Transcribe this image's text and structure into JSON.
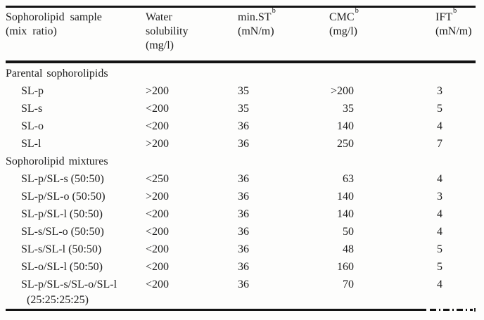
{
  "colors": {
    "text": "#1d1d1d",
    "rule": "#141414",
    "background": "#fdfdfc"
  },
  "table": {
    "headers": {
      "col1": {
        "line1": "Sophorolipid sample",
        "line2": "(mix ratio)"
      },
      "col2": {
        "line1": "Water",
        "line2": "solubility",
        "line3": "(mg/l)"
      },
      "col3": {
        "name": "min.ST",
        "sup": "b",
        "unit": "(mN/m)"
      },
      "col4": {
        "name": "CMC",
        "sup": "b",
        "unit": "(mg/l)"
      },
      "col5": {
        "name": "IFT",
        "sup": "b",
        "unit": "(mN/m)"
      }
    },
    "sections": [
      {
        "title": "Parental sophorolipids",
        "rows": [
          {
            "sample": "SL-p",
            "water_solubility": ">200",
            "min_st": "35",
            "cmc": ">200",
            "ift": "3"
          },
          {
            "sample": "SL-s",
            "water_solubility": "<200",
            "min_st": "35",
            "cmc": "35",
            "ift": "5"
          },
          {
            "sample": "SL-o",
            "water_solubility": "<200",
            "min_st": "36",
            "cmc": "140",
            "ift": "4"
          },
          {
            "sample": "SL-l",
            "water_solubility": ">200",
            "min_st": "36",
            "cmc": "250",
            "ift": "7"
          }
        ]
      },
      {
        "title": "Sophorolipid mixtures",
        "rows": [
          {
            "sample": "SL-p/SL-s (50:50)",
            "water_solubility": "<250",
            "min_st": "36",
            "cmc": "63",
            "ift": "4"
          },
          {
            "sample": "SL-p/SL-o (50:50)",
            "water_solubility": ">200",
            "min_st": "36",
            "cmc": "140",
            "ift": "3"
          },
          {
            "sample": "SL-p/SL-l (50:50)",
            "water_solubility": "<200",
            "min_st": "36",
            "cmc": "140",
            "ift": "4"
          },
          {
            "sample": "SL-s/SL-o (50:50)",
            "water_solubility": "<200",
            "min_st": "36",
            "cmc": "50",
            "ift": "4"
          },
          {
            "sample": "SL-s/SL-l (50:50)",
            "water_solubility": "<200",
            "min_st": "36",
            "cmc": "48",
            "ift": "5"
          },
          {
            "sample": "SL-o/SL-l (50:50)",
            "water_solubility": "<200",
            "min_st": "36",
            "cmc": "160",
            "ift": "5"
          },
          {
            "sample": "SL-p/SL-s/SL-o/SL-l",
            "sample_line2": "(25:25:25:25)",
            "water_solubility": "<200",
            "min_st": "36",
            "cmc": "70",
            "ift": "4"
          }
        ]
      }
    ]
  }
}
